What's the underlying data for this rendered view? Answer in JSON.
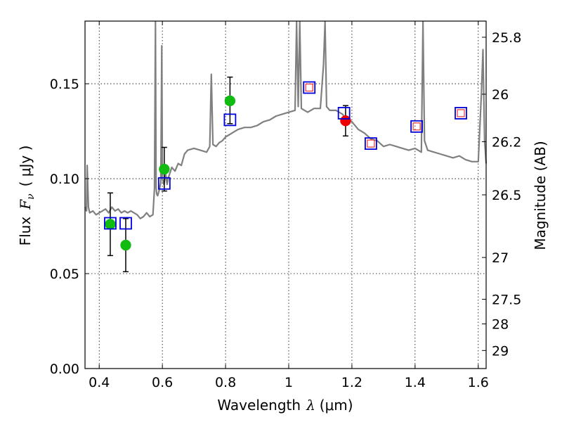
{
  "chart_data": {
    "type": "scatter",
    "xlabel": "Wavelength",
    "xlabel_symbol": "λ",
    "xlabel_unit": "(μm)",
    "ylabel": "Flux",
    "ylabel_symbol": "F",
    "ylabel_sub": "ν",
    "ylabel_unit": "( μJy )",
    "y2label": "Magnitude (AB)",
    "xlim": [
      0.355,
      1.625
    ],
    "ylim": [
      0.0,
      0.183
    ],
    "grid": true,
    "x_ticks": [
      0.4,
      0.6,
      0.8,
      1.0,
      1.2,
      1.4,
      1.6
    ],
    "x_tick_labels": [
      "0.4",
      "0.6",
      "0.8",
      "1",
      "1.2",
      "1.4",
      "1.6"
    ],
    "y_ticks": [
      0.0,
      0.05,
      0.1,
      0.15
    ],
    "y_tick_labels": [
      "0.00",
      "0.05",
      "0.10",
      "0.15"
    ],
    "y2_ticks": [
      {
        "label": "25.8",
        "flux": 0.1745
      },
      {
        "label": "26",
        "flux": 0.1445
      },
      {
        "label": "26.2",
        "flux": 0.1195
      },
      {
        "label": "26.5",
        "flux": 0.0915
      },
      {
        "label": "27",
        "flux": 0.0585
      },
      {
        "label": "27.5",
        "flux": 0.0365
      },
      {
        "label": "28",
        "flux": 0.0235
      },
      {
        "label": "29",
        "flux": 0.0095
      }
    ],
    "series": [
      {
        "name": "model spectrum",
        "style": "line",
        "color": "#808080",
        "x": [
          0.355,
          0.36,
          0.362,
          0.366,
          0.37,
          0.38,
          0.39,
          0.4,
          0.41,
          0.42,
          0.43,
          0.44,
          0.45,
          0.46,
          0.47,
          0.48,
          0.49,
          0.5,
          0.51,
          0.52,
          0.53,
          0.54,
          0.55,
          0.56,
          0.57,
          0.575,
          0.578,
          0.58,
          0.582,
          0.585,
          0.59,
          0.595,
          0.598,
          0.6,
          0.605,
          0.608,
          0.61,
          0.615,
          0.62,
          0.63,
          0.64,
          0.65,
          0.66,
          0.67,
          0.68,
          0.7,
          0.72,
          0.74,
          0.75,
          0.755,
          0.76,
          0.77,
          0.78,
          0.79,
          0.8,
          0.81,
          0.82,
          0.83,
          0.84,
          0.86,
          0.88,
          0.9,
          0.92,
          0.94,
          0.96,
          0.98,
          1.0,
          1.02,
          1.025,
          1.03,
          1.035,
          1.04,
          1.05,
          1.06,
          1.08,
          1.1,
          1.11,
          1.115,
          1.12,
          1.13,
          1.15,
          1.17,
          1.18,
          1.2,
          1.22,
          1.24,
          1.26,
          1.28,
          1.3,
          1.32,
          1.34,
          1.36,
          1.38,
          1.4,
          1.42,
          1.425,
          1.43,
          1.44,
          1.46,
          1.48,
          1.5,
          1.52,
          1.54,
          1.56,
          1.58,
          1.6,
          1.61,
          1.615,
          1.62,
          1.625
        ],
        "y": [
          0.085,
          0.083,
          0.107,
          0.085,
          0.082,
          0.083,
          0.081,
          0.082,
          0.083,
          0.084,
          0.082,
          0.085,
          0.083,
          0.084,
          0.082,
          0.083,
          0.082,
          0.083,
          0.082,
          0.081,
          0.079,
          0.08,
          0.082,
          0.08,
          0.081,
          0.095,
          0.183,
          0.095,
          0.092,
          0.091,
          0.094,
          0.098,
          0.17,
          0.1,
          0.097,
          0.1,
          0.103,
          0.097,
          0.101,
          0.106,
          0.104,
          0.108,
          0.107,
          0.113,
          0.115,
          0.116,
          0.115,
          0.114,
          0.117,
          0.155,
          0.118,
          0.117,
          0.119,
          0.12,
          0.122,
          0.123,
          0.124,
          0.125,
          0.126,
          0.127,
          0.127,
          0.128,
          0.13,
          0.131,
          0.133,
          0.134,
          0.135,
          0.136,
          0.183,
          0.138,
          0.183,
          0.137,
          0.136,
          0.135,
          0.137,
          0.137,
          0.16,
          0.183,
          0.138,
          0.136,
          0.136,
          0.134,
          0.132,
          0.13,
          0.126,
          0.124,
          0.121,
          0.12,
          0.117,
          0.118,
          0.117,
          0.116,
          0.115,
          0.116,
          0.114,
          0.183,
          0.12,
          0.115,
          0.114,
          0.113,
          0.112,
          0.111,
          0.112,
          0.11,
          0.109,
          0.109,
          0.145,
          0.168,
          0.12,
          0.108
        ]
      },
      {
        "name": "observed photometry",
        "style": "marker",
        "marker": "circle",
        "color": "#11bb11",
        "x": [
          0.435,
          0.484,
          0.606,
          0.814
        ],
        "y": [
          0.076,
          0.065,
          0.105,
          0.141
        ],
        "yerr_low": [
          0.0595,
          0.051,
          0.0935,
          0.129
        ],
        "yerr_high": [
          0.0925,
          0.079,
          0.1165,
          0.1535
        ]
      },
      {
        "name": "observed photometry (red)",
        "style": "marker",
        "marker": "circle",
        "color": "#ee0000",
        "x": [
          1.18
        ],
        "y": [
          0.1305
        ],
        "yerr_low": [
          0.1225
        ],
        "yerr_high": [
          0.1385
        ]
      },
      {
        "name": "model photometry",
        "style": "marker",
        "marker": "square",
        "color": "#0000dd",
        "x": [
          0.435,
          0.484,
          0.606,
          0.814,
          1.065,
          1.175,
          1.26,
          1.405,
          1.545
        ],
        "y": [
          0.0765,
          0.0765,
          0.0975,
          0.131,
          0.148,
          0.1345,
          0.1185,
          0.1275,
          0.1345
        ]
      },
      {
        "name": "model photometry inner",
        "style": "marker",
        "marker": "square-inner",
        "color": "#ee3333",
        "x": [
          1.065,
          1.26,
          1.405,
          1.545
        ],
        "y": [
          0.148,
          0.1185,
          0.1275,
          0.1345
        ]
      }
    ]
  }
}
